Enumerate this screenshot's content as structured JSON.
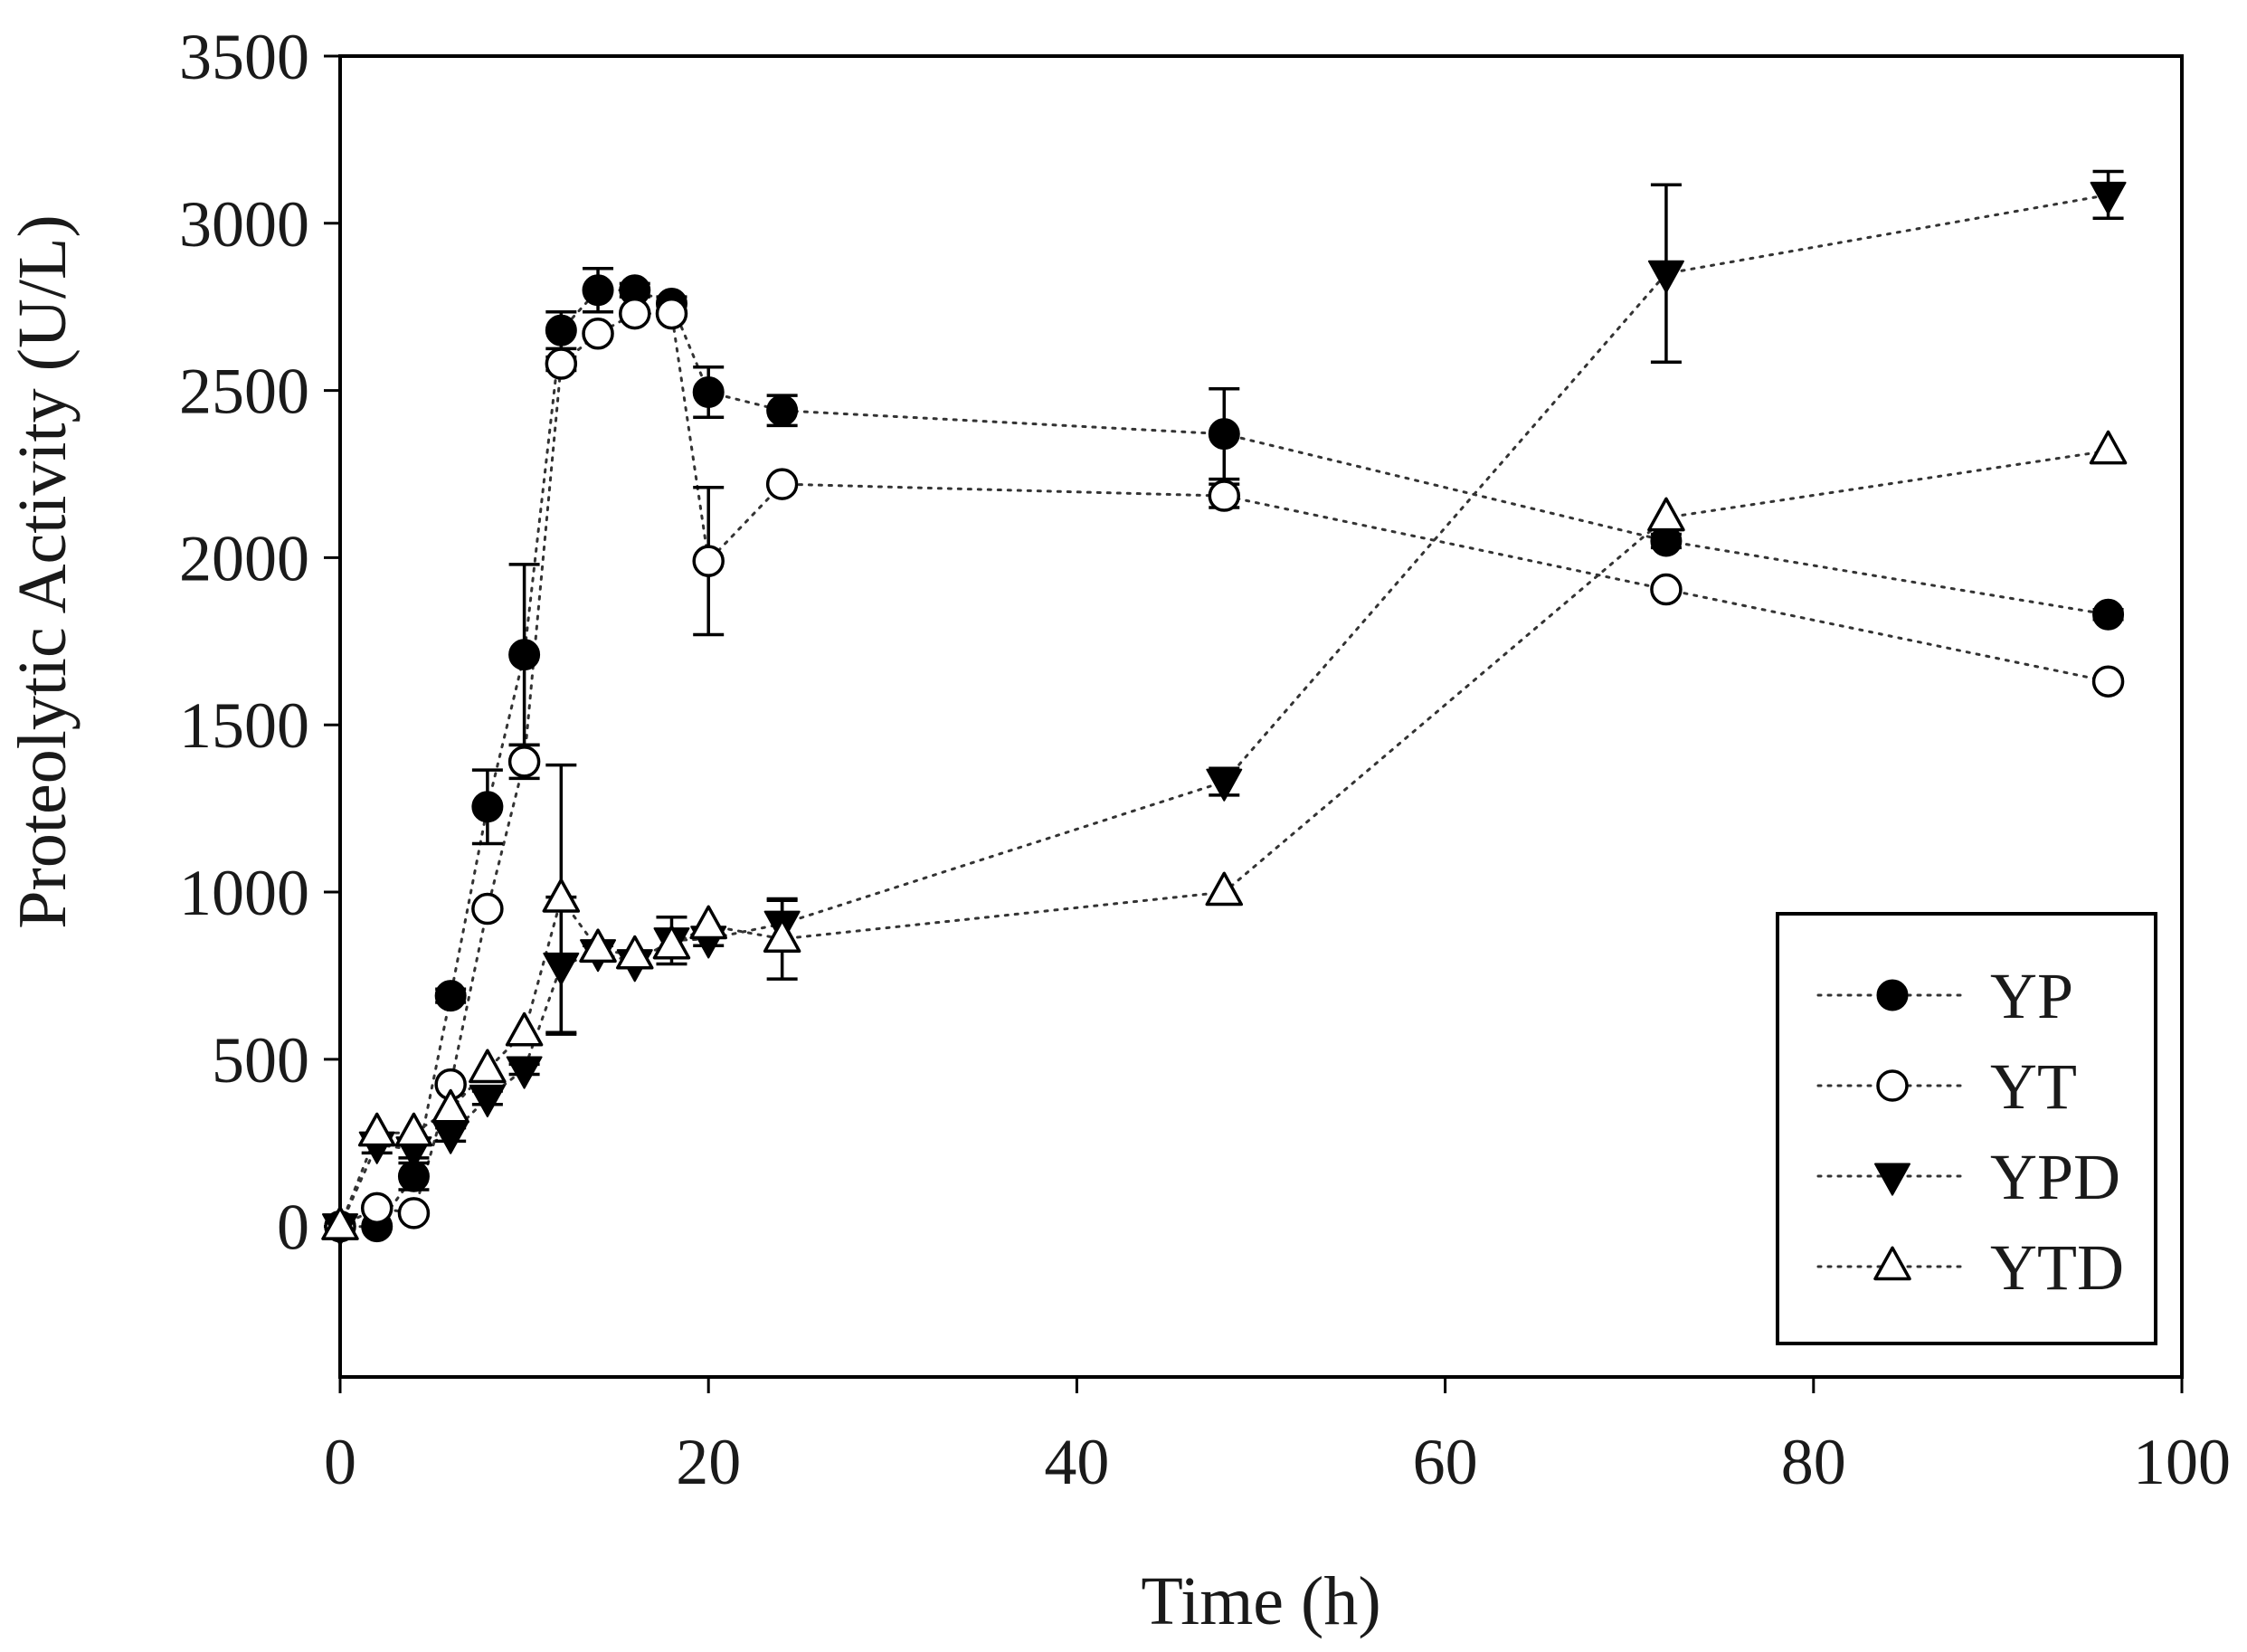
{
  "chart_data": {
    "type": "line",
    "title": "",
    "xlabel": "Time (h)",
    "ylabel": "Proteolytic Activity (U/L)",
    "xlim": [
      0,
      100
    ],
    "ylim": [
      -450,
      3500
    ],
    "xticks": [
      0,
      20,
      40,
      60,
      80,
      100
    ],
    "yticks": [
      0,
      500,
      1000,
      1500,
      2000,
      2500,
      3000,
      3500
    ],
    "grid": false,
    "legend_position": "bottom-right",
    "series": [
      {
        "name": "YP",
        "marker": "filled-circle",
        "x": [
          0,
          2,
          4,
          6,
          8,
          10,
          12,
          14,
          16,
          18,
          20,
          24,
          48,
          72,
          96
        ],
        "y": [
          0,
          0,
          150,
          690,
          1255,
          1710,
          2680,
          2800,
          2800,
          2760,
          2495,
          2440,
          2370,
          2050,
          1830
        ],
        "error": [
          0,
          0,
          40,
          20,
          110,
          270,
          55,
          65,
          20,
          20,
          75,
          45,
          135,
          20,
          15
        ]
      },
      {
        "name": "YT",
        "marker": "open-circle",
        "x": [
          0,
          2,
          4,
          6,
          8,
          10,
          12,
          14,
          16,
          18,
          20,
          24,
          48,
          72,
          96
        ],
        "y": [
          0,
          55,
          40,
          425,
          950,
          1390,
          2580,
          2670,
          2730,
          2730,
          1990,
          2220,
          2185,
          1905,
          1630
        ],
        "error": [
          0,
          0,
          0,
          0,
          0,
          50,
          20,
          0,
          0,
          0,
          220,
          0,
          35,
          0,
          0
        ]
      },
      {
        "name": "YPD",
        "marker": "filled-triangle-down",
        "x": [
          0,
          2,
          4,
          6,
          8,
          10,
          12,
          14,
          16,
          18,
          20,
          24,
          48,
          72,
          96
        ],
        "y": [
          0,
          245,
          230,
          275,
          385,
          470,
          780,
          820,
          790,
          855,
          860,
          905,
          1330,
          2850,
          3085
        ],
        "error": [
          0,
          25,
          25,
          20,
          20,
          15,
          205,
          20,
          0,
          70,
          20,
          70,
          40,
          265,
          70
        ]
      },
      {
        "name": "YTD",
        "marker": "open-triangle-up",
        "x": [
          0,
          2,
          4,
          6,
          8,
          10,
          12,
          14,
          16,
          18,
          20,
          24,
          48,
          72,
          96
        ],
        "y": [
          0,
          280,
          280,
          350,
          470,
          580,
          980,
          830,
          810,
          840,
          900,
          860,
          1000,
          2120,
          2320
        ],
        "error": [
          0,
          0,
          0,
          0,
          0,
          0,
          400,
          0,
          0,
          0,
          0,
          120,
          0,
          0,
          0
        ]
      }
    ]
  }
}
